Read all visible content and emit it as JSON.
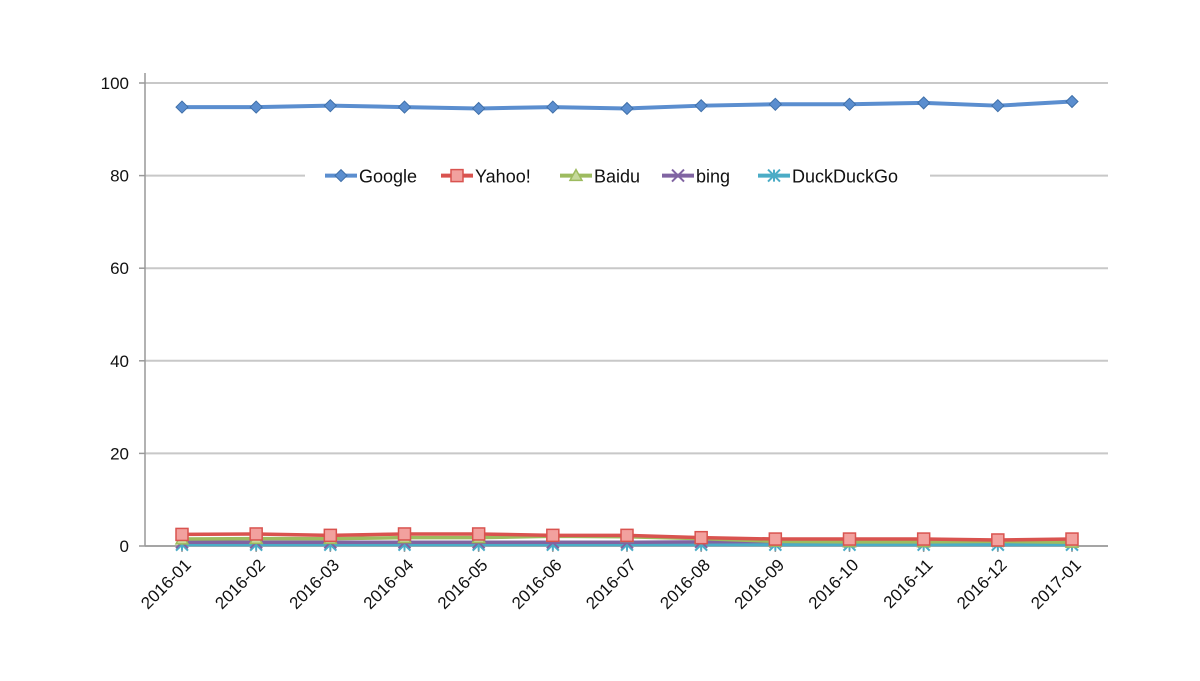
{
  "chart_data": {
    "type": "line",
    "title": "",
    "xlabel": "",
    "ylabel": "",
    "ylim": [
      0,
      100
    ],
    "yticks": [
      0,
      20,
      40,
      60,
      80,
      100
    ],
    "grid": true,
    "legend_position": "top-center",
    "categories": [
      "2016-01",
      "2016-02",
      "2016-03",
      "2016-04",
      "2016-05",
      "2016-06",
      "2016-07",
      "2016-08",
      "2016-09",
      "2016-10",
      "2016-11",
      "2016-12",
      "2017-01"
    ],
    "series": [
      {
        "name": "Google",
        "color": "#5b8ecf",
        "marker": "diamond",
        "values": [
          94.8,
          94.8,
          95.1,
          94.8,
          94.5,
          94.8,
          94.5,
          95.1,
          95.4,
          95.4,
          95.7,
          95.1,
          96.0
        ]
      },
      {
        "name": "Yahoo!",
        "color": "#d9534f",
        "marker": "square",
        "values": [
          2.5,
          2.6,
          2.3,
          2.6,
          2.6,
          2.3,
          2.3,
          1.8,
          1.5,
          1.5,
          1.5,
          1.3,
          1.5
        ]
      },
      {
        "name": "Baidu",
        "color": "#9dbb5f",
        "marker": "triangle",
        "values": [
          1.5,
          1.6,
          1.6,
          1.8,
          1.8,
          2.1,
          2.0,
          1.6,
          1.0,
          0.9,
          0.9,
          1.0,
          0.8
        ]
      },
      {
        "name": "bing",
        "color": "#8064a2",
        "marker": "x",
        "values": [
          0.8,
          0.8,
          0.8,
          0.8,
          0.8,
          0.8,
          0.8,
          0.9,
          1.0,
          1.0,
          1.0,
          1.1,
          1.0
        ]
      },
      {
        "name": "DuckDuckGo",
        "color": "#4bacc6",
        "marker": "star",
        "values": [
          0.3,
          0.3,
          0.3,
          0.3,
          0.3,
          0.3,
          0.3,
          0.3,
          0.3,
          0.3,
          0.3,
          0.3,
          0.3
        ]
      }
    ]
  }
}
